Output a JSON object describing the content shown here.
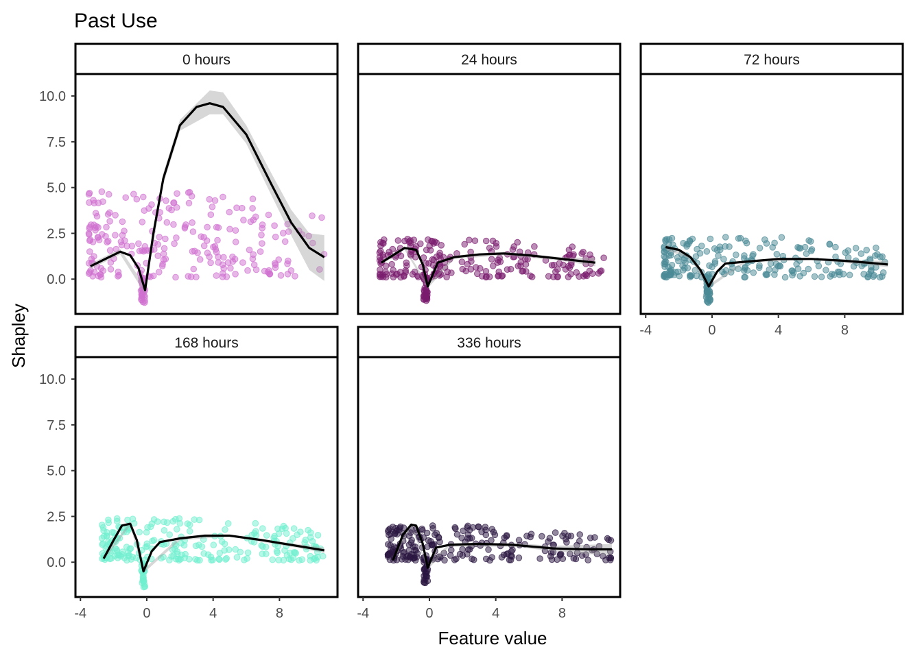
{
  "chart_data": {
    "type": "scatter",
    "title": "Past Use",
    "xlabel": "Feature value",
    "ylabel": "Shapley",
    "xlim": [
      -4.3,
      11.5
    ],
    "ylim": [
      -1.9,
      11.2
    ],
    "xticks": [
      -4,
      0,
      4,
      8
    ],
    "xtick_labels": [
      "-4",
      "0",
      "4",
      "8"
    ],
    "yticks": [
      0,
      2.5,
      5,
      7.5,
      10
    ],
    "ytick_labels": [
      "0.0",
      "2.5",
      "5.0",
      "7.5",
      "10.0"
    ],
    "grid": false,
    "legend": "none",
    "panels": [
      {
        "label": "0 hours",
        "color": "#d070d0",
        "smooth": [
          [
            -3.4,
            0.7
          ],
          [
            -2.5,
            1.1
          ],
          [
            -1.6,
            1.5
          ],
          [
            -1.0,
            1.3
          ],
          [
            -0.5,
            0.6
          ],
          [
            -0.1,
            -0.6
          ],
          [
            0.4,
            2.5
          ],
          [
            1.0,
            5.5
          ],
          [
            2.0,
            8.4
          ],
          [
            3.0,
            9.4
          ],
          [
            3.8,
            9.6
          ],
          [
            4.6,
            9.4
          ],
          [
            6.0,
            7.9
          ],
          [
            7.5,
            5.2
          ],
          [
            8.7,
            3.1
          ],
          [
            9.8,
            1.7
          ],
          [
            10.7,
            1.2
          ]
        ],
        "ribbon": [
          [
            -3.4,
            0.55,
            0.85
          ],
          [
            -1.6,
            1.35,
            1.65
          ],
          [
            -0.1,
            -0.8,
            -0.4
          ],
          [
            1.0,
            5.2,
            5.8
          ],
          [
            2.0,
            8.1,
            8.7
          ],
          [
            3.8,
            9.0,
            10.3
          ],
          [
            4.6,
            9.0,
            10.2
          ],
          [
            6.0,
            7.4,
            8.4
          ],
          [
            7.5,
            4.6,
            5.8
          ],
          [
            8.7,
            2.4,
            3.8
          ],
          [
            9.8,
            0.5,
            2.5
          ],
          [
            10.7,
            -0.1,
            2.4
          ]
        ],
        "cloud": {
          "x_range": [
            -3.5,
            10.8
          ],
          "y_range": [
            -1.3,
            4.9
          ]
        }
      },
      {
        "label": "24 hours",
        "color": "#7a1c6e",
        "smooth": [
          [
            -2.9,
            0.9
          ],
          [
            -2.2,
            1.3
          ],
          [
            -1.5,
            1.7
          ],
          [
            -0.8,
            1.6
          ],
          [
            -0.4,
            0.8
          ],
          [
            -0.1,
            -0.4
          ],
          [
            0.5,
            0.9
          ],
          [
            1.5,
            1.2
          ],
          [
            3.0,
            1.35
          ],
          [
            4.5,
            1.4
          ],
          [
            6.0,
            1.3
          ],
          [
            8.0,
            1.1
          ],
          [
            10.0,
            0.9
          ]
        ],
        "ribbon": [
          [
            -2.9,
            0.8,
            1.0
          ],
          [
            -1.5,
            1.6,
            1.8
          ],
          [
            -0.1,
            -0.5,
            -0.3
          ],
          [
            1.5,
            1.1,
            1.3
          ],
          [
            4.5,
            1.3,
            1.5
          ],
          [
            8.0,
            1.0,
            1.2
          ],
          [
            10.0,
            0.7,
            1.15
          ]
        ],
        "cloud": {
          "x_range": [
            -3.0,
            10.6
          ],
          "y_range": [
            -1.2,
            2.2
          ]
        }
      },
      {
        "label": "72 hours",
        "color": "#4a8a96",
        "smooth": [
          [
            -2.8,
            1.75
          ],
          [
            -2.0,
            1.6
          ],
          [
            -1.3,
            1.2
          ],
          [
            -0.7,
            0.5
          ],
          [
            -0.2,
            -0.4
          ],
          [
            0.3,
            0.4
          ],
          [
            0.8,
            0.85
          ],
          [
            2.0,
            0.95
          ],
          [
            4.0,
            1.1
          ],
          [
            6.0,
            1.1
          ],
          [
            8.0,
            1.0
          ],
          [
            10.0,
            0.85
          ],
          [
            10.6,
            0.8
          ]
        ],
        "ribbon": [
          [
            -2.8,
            1.6,
            1.9
          ],
          [
            -1.3,
            1.1,
            1.3
          ],
          [
            -0.2,
            -0.5,
            -0.3
          ],
          [
            2.0,
            0.9,
            1.0
          ],
          [
            6.0,
            1.05,
            1.15
          ],
          [
            10.0,
            0.72,
            1.0
          ],
          [
            10.6,
            0.65,
            1.0
          ]
        ],
        "cloud": {
          "x_range": [
            -2.9,
            10.6
          ],
          "y_range": [
            -1.3,
            2.3
          ]
        }
      },
      {
        "label": "168 hours",
        "color": "#70efcf",
        "smooth": [
          [
            -2.6,
            0.2
          ],
          [
            -2.0,
            1.2
          ],
          [
            -1.5,
            2.0
          ],
          [
            -1.0,
            2.1
          ],
          [
            -0.6,
            1.2
          ],
          [
            -0.2,
            -0.5
          ],
          [
            0.3,
            0.6
          ],
          [
            0.8,
            1.1
          ],
          [
            2.0,
            1.3
          ],
          [
            3.5,
            1.45
          ],
          [
            5.0,
            1.45
          ],
          [
            7.0,
            1.2
          ],
          [
            9.0,
            0.9
          ],
          [
            10.7,
            0.65
          ]
        ],
        "ribbon": [
          [
            -2.6,
            0.1,
            0.3
          ],
          [
            -1.0,
            2.0,
            2.2
          ],
          [
            -0.2,
            -0.6,
            -0.4
          ],
          [
            2.0,
            1.2,
            1.4
          ],
          [
            5.0,
            1.4,
            1.5
          ],
          [
            9.0,
            0.8,
            1.0
          ],
          [
            10.7,
            0.5,
            0.8
          ]
        ],
        "cloud": {
          "x_range": [
            -2.7,
            10.8
          ],
          "y_range": [
            -1.4,
            2.4
          ]
        }
      },
      {
        "label": "336 hours",
        "color": "#2a1540",
        "smooth": [
          [
            -2.2,
            0.1
          ],
          [
            -1.6,
            1.5
          ],
          [
            -1.1,
            2.05
          ],
          [
            -0.8,
            2.0
          ],
          [
            -0.4,
            1.0
          ],
          [
            -0.1,
            -0.3
          ],
          [
            0.4,
            0.8
          ],
          [
            1.2,
            0.95
          ],
          [
            3.0,
            1.0
          ],
          [
            5.0,
            0.95
          ],
          [
            7.5,
            0.75
          ],
          [
            9.5,
            0.7
          ],
          [
            11.0,
            0.7
          ]
        ],
        "ribbon": [
          [
            -2.2,
            0.0,
            0.2
          ],
          [
            -1.1,
            1.95,
            2.15
          ],
          [
            -0.1,
            -0.4,
            -0.2
          ],
          [
            1.2,
            0.85,
            1.05
          ],
          [
            5.0,
            0.85,
            1.05
          ],
          [
            7.5,
            0.6,
            0.9
          ],
          [
            9.5,
            0.45,
            0.95
          ],
          [
            11.0,
            0.4,
            1.0
          ]
        ],
        "cloud": {
          "x_range": [
            -2.5,
            11.0
          ],
          "y_range": [
            -1.2,
            2.0
          ]
        }
      }
    ]
  }
}
